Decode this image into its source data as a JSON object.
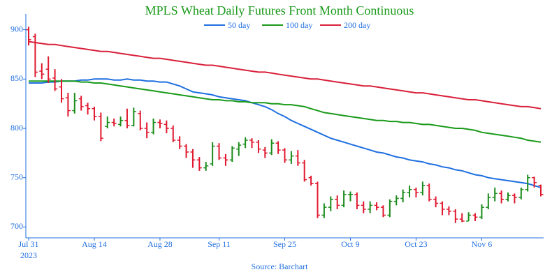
{
  "chart_data": {
    "type": "ohlc",
    "title": "MPLS Wheat Daily Futures Front Month Continuous",
    "source": "Source: Barchart",
    "x_year_label": "2023",
    "categories": [
      "2023-07-31",
      "2023-08-01",
      "2023-08-02",
      "2023-08-03",
      "2023-08-04",
      "2023-08-07",
      "2023-08-08",
      "2023-08-09",
      "2023-08-10",
      "2023-08-11",
      "2023-08-14",
      "2023-08-15",
      "2023-08-16",
      "2023-08-17",
      "2023-08-18",
      "2023-08-21",
      "2023-08-22",
      "2023-08-23",
      "2023-08-24",
      "2023-08-25",
      "2023-08-28",
      "2023-08-29",
      "2023-08-30",
      "2023-08-31",
      "2023-09-01",
      "2023-09-05",
      "2023-09-06",
      "2023-09-07",
      "2023-09-08",
      "2023-09-11",
      "2023-09-12",
      "2023-09-13",
      "2023-09-14",
      "2023-09-15",
      "2023-09-18",
      "2023-09-19",
      "2023-09-20",
      "2023-09-21",
      "2023-09-22",
      "2023-09-25",
      "2023-09-26",
      "2023-09-27",
      "2023-09-28",
      "2023-09-29",
      "2023-10-02",
      "2023-10-03",
      "2023-10-04",
      "2023-10-05",
      "2023-10-06",
      "2023-10-09",
      "2023-10-10",
      "2023-10-11",
      "2023-10-12",
      "2023-10-13",
      "2023-10-16",
      "2023-10-17",
      "2023-10-18",
      "2023-10-19",
      "2023-10-20",
      "2023-10-23",
      "2023-10-24",
      "2023-10-25",
      "2023-10-26",
      "2023-10-27",
      "2023-10-30",
      "2023-10-31",
      "2023-11-01",
      "2023-11-02",
      "2023-11-03",
      "2023-11-06",
      "2023-11-07",
      "2023-11-08",
      "2023-11-09",
      "2023-11-10",
      "2023-11-13",
      "2023-11-14",
      "2023-11-15",
      "2023-11-16",
      "2023-11-17"
    ],
    "open": [
      900,
      893,
      858,
      860,
      851,
      842,
      831,
      818,
      830,
      823,
      820,
      812,
      802,
      806,
      804,
      808,
      803,
      815,
      800,
      796,
      806,
      804,
      800,
      788,
      782,
      776,
      768,
      760,
      764,
      782,
      770,
      768,
      779,
      784,
      788,
      786,
      778,
      775,
      785,
      778,
      768,
      772,
      765,
      750,
      744,
      712,
      720,
      728,
      722,
      733,
      733,
      722,
      718,
      722,
      720,
      712,
      726,
      729,
      735,
      738,
      735,
      742,
      728,
      724,
      718,
      716,
      708,
      706,
      712,
      710,
      720,
      730,
      734,
      728,
      732,
      730,
      738,
      750,
      742
    ],
    "high": [
      903,
      896,
      866,
      873,
      860,
      850,
      836,
      836,
      833,
      826,
      822,
      816,
      812,
      810,
      812,
      820,
      821,
      818,
      806,
      810,
      809,
      808,
      803,
      792,
      784,
      779,
      771,
      766,
      786,
      785,
      774,
      782,
      786,
      791,
      790,
      788,
      781,
      789,
      787,
      780,
      777,
      778,
      768,
      752,
      746,
      724,
      731,
      732,
      737,
      736,
      735,
      726,
      726,
      725,
      722,
      728,
      732,
      738,
      742,
      740,
      746,
      744,
      731,
      726,
      721,
      718,
      714,
      715,
      714,
      723,
      734,
      740,
      737,
      735,
      734,
      740,
      753,
      751,
      743
    ],
    "low": [
      884,
      852,
      850,
      846,
      838,
      826,
      812,
      815,
      818,
      814,
      808,
      787,
      800,
      802,
      802,
      800,
      802,
      798,
      790,
      794,
      800,
      795,
      786,
      779,
      770,
      760,
      757,
      757,
      762,
      768,
      762,
      766,
      772,
      780,
      780,
      775,
      770,
      773,
      774,
      765,
      764,
      762,
      746,
      742,
      709,
      709,
      716,
      718,
      720,
      726,
      718,
      714,
      714,
      717,
      710,
      710,
      722,
      725,
      730,
      730,
      732,
      726,
      720,
      712,
      712,
      704,
      705,
      706,
      706,
      708,
      718,
      726,
      724,
      726,
      724,
      728,
      736,
      740,
      731
    ],
    "close": [
      890,
      857,
      855,
      850,
      840,
      830,
      818,
      828,
      822,
      820,
      812,
      790,
      806,
      805,
      808,
      803,
      817,
      800,
      796,
      806,
      805,
      800,
      788,
      782,
      776,
      768,
      760,
      762,
      782,
      770,
      768,
      780,
      783,
      788,
      786,
      779,
      775,
      785,
      778,
      768,
      772,
      765,
      748,
      744,
      712,
      720,
      728,
      722,
      733,
      733,
      722,
      718,
      722,
      720,
      712,
      726,
      729,
      735,
      738,
      735,
      742,
      728,
      724,
      718,
      716,
      708,
      706,
      712,
      710,
      720,
      730,
      734,
      728,
      732,
      730,
      738,
      750,
      745,
      733
    ],
    "up_color": "#1a8c1a",
    "down_color": "#e0192f",
    "series": [
      {
        "name": "50 day",
        "color": "#1f6fe0",
        "values": [
          846,
          846,
          846,
          847,
          847,
          848,
          848,
          848,
          849,
          849,
          850,
          850,
          850,
          849,
          849,
          850,
          849,
          849,
          848,
          848,
          847,
          847,
          845,
          843,
          840,
          837,
          836,
          835,
          834,
          832,
          831,
          830,
          829,
          828,
          826,
          824,
          822,
          819,
          815,
          812,
          808,
          805,
          802,
          799,
          796,
          793,
          790,
          788,
          786,
          784,
          782,
          780,
          778,
          776,
          775,
          773,
          771,
          770,
          768,
          767,
          766,
          764,
          763,
          761,
          760,
          758,
          757,
          755,
          753,
          752,
          750,
          749,
          748,
          747,
          746,
          745,
          744,
          742,
          740
        ]
      },
      {
        "name": "100 day",
        "color": "#1a9a1a",
        "values": [
          848,
          848,
          848,
          848,
          848,
          848,
          848,
          848,
          847,
          847,
          846,
          846,
          845,
          844,
          843,
          842,
          841,
          840,
          839,
          838,
          837,
          836,
          835,
          834,
          833,
          832,
          831,
          830,
          829,
          829,
          828,
          828,
          827,
          827,
          826,
          826,
          826,
          825,
          825,
          824,
          824,
          823,
          822,
          820,
          818,
          816,
          815,
          814,
          813,
          812,
          811,
          810,
          809,
          808,
          808,
          807,
          807,
          806,
          806,
          805,
          804,
          804,
          803,
          802,
          801,
          800,
          800,
          799,
          798,
          796,
          795,
          794,
          793,
          792,
          791,
          790,
          788,
          787,
          786
        ]
      },
      {
        "name": "200 day",
        "color": "#d9203a",
        "values": [
          888,
          887,
          886,
          885,
          885,
          884,
          883,
          882,
          881,
          880,
          879,
          878,
          878,
          877,
          876,
          875,
          874,
          873,
          872,
          871,
          871,
          870,
          869,
          868,
          867,
          866,
          865,
          864,
          864,
          863,
          862,
          861,
          860,
          859,
          858,
          857,
          857,
          856,
          855,
          854,
          853,
          852,
          851,
          850,
          850,
          849,
          848,
          847,
          846,
          845,
          844,
          843,
          843,
          842,
          841,
          840,
          839,
          838,
          837,
          836,
          836,
          835,
          834,
          833,
          832,
          831,
          830,
          829,
          829,
          828,
          827,
          826,
          825,
          824,
          823,
          822,
          822,
          821,
          820
        ]
      }
    ],
    "ylim": [
      689,
      916
    ],
    "yticks": [
      700,
      750,
      800,
      850,
      900
    ],
    "xticks": [
      {
        "value": "2023-07-31",
        "label": "Jul 31"
      },
      {
        "value": "2023-08-14",
        "label": "Aug 14"
      },
      {
        "value": "2023-08-28",
        "label": "Aug 28"
      },
      {
        "value": "2023-09-11",
        "label": "Sep 11"
      },
      {
        "value": "2023-09-25",
        "label": "Sep 25"
      },
      {
        "value": "2023-10-09",
        "label": "Oct 9"
      },
      {
        "value": "2023-10-23",
        "label": "Oct 23"
      },
      {
        "value": "2023-11-06",
        "label": "Nov 6"
      }
    ],
    "axis_color": "#1f6fe0",
    "title_color": "#1a9a1a"
  }
}
